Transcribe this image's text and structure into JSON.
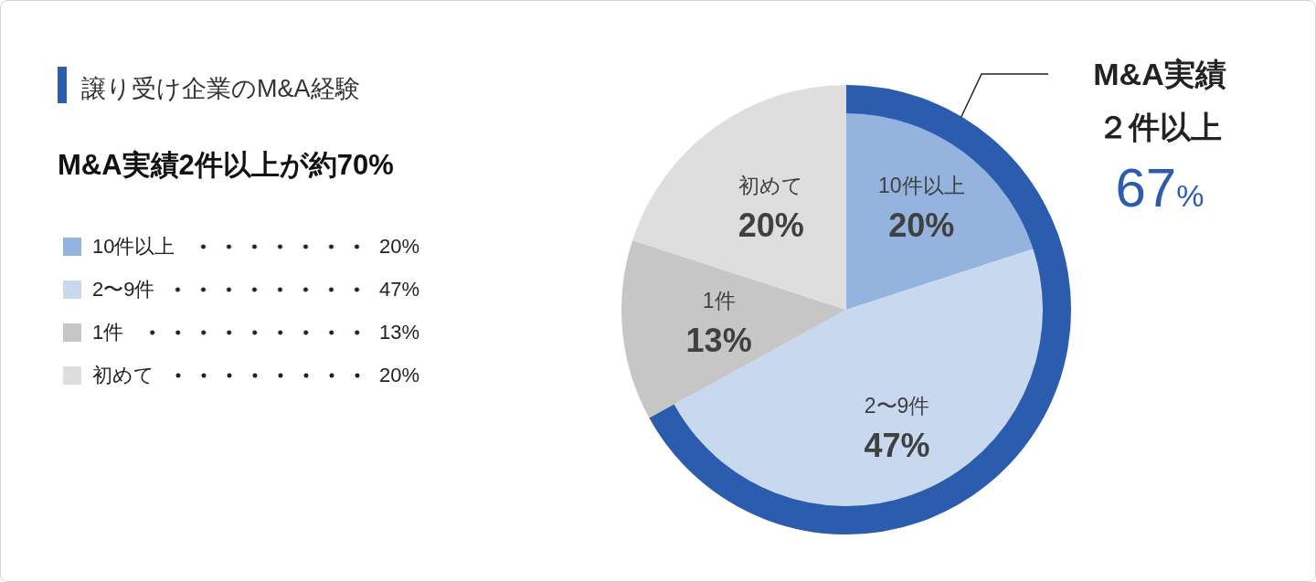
{
  "chart_data": {
    "type": "pie",
    "title": "譲り受け企業のM&A経験",
    "subtitle": "M&A実績2件以上が約70%",
    "categories": [
      "10件以上",
      "2〜9件",
      "1件",
      "初めて"
    ],
    "values": [
      20,
      47,
      13,
      20
    ],
    "value_labels": [
      "20%",
      "47%",
      "13%",
      "20%"
    ],
    "colors": [
      "#94b3df",
      "#c8d9ef",
      "#c6c6c6",
      "#dedede"
    ],
    "legend": "left",
    "annotations": [
      "M&A実績",
      "２件以上",
      "67%"
    ]
  }
}
